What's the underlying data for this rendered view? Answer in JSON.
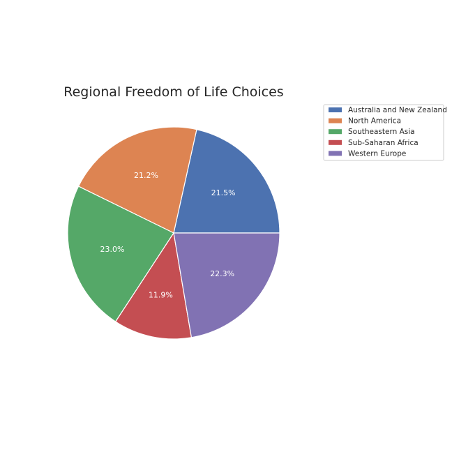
{
  "chart_data": {
    "type": "pie",
    "title": "Regional Freedom of Life Choices",
    "slices": [
      {
        "label": "Australia and New Zealand",
        "value": 21.5,
        "pct_label": "21.5%",
        "color": "#4c72b0"
      },
      {
        "label": "North America",
        "value": 21.2,
        "pct_label": "21.2%",
        "color": "#dd8452"
      },
      {
        "label": "Southeastern Asia",
        "value": 23.0,
        "pct_label": "23.0%",
        "color": "#55a868"
      },
      {
        "label": "Sub-Saharan Africa",
        "value": 11.9,
        "pct_label": "11.9%",
        "color": "#c44e52"
      },
      {
        "label": "Western Europe",
        "value": 22.3,
        "pct_label": "22.3%",
        "color": "#8172b3"
      }
    ],
    "start_angle": 0,
    "direction": "counterclockwise",
    "legend_position": "top-right"
  }
}
